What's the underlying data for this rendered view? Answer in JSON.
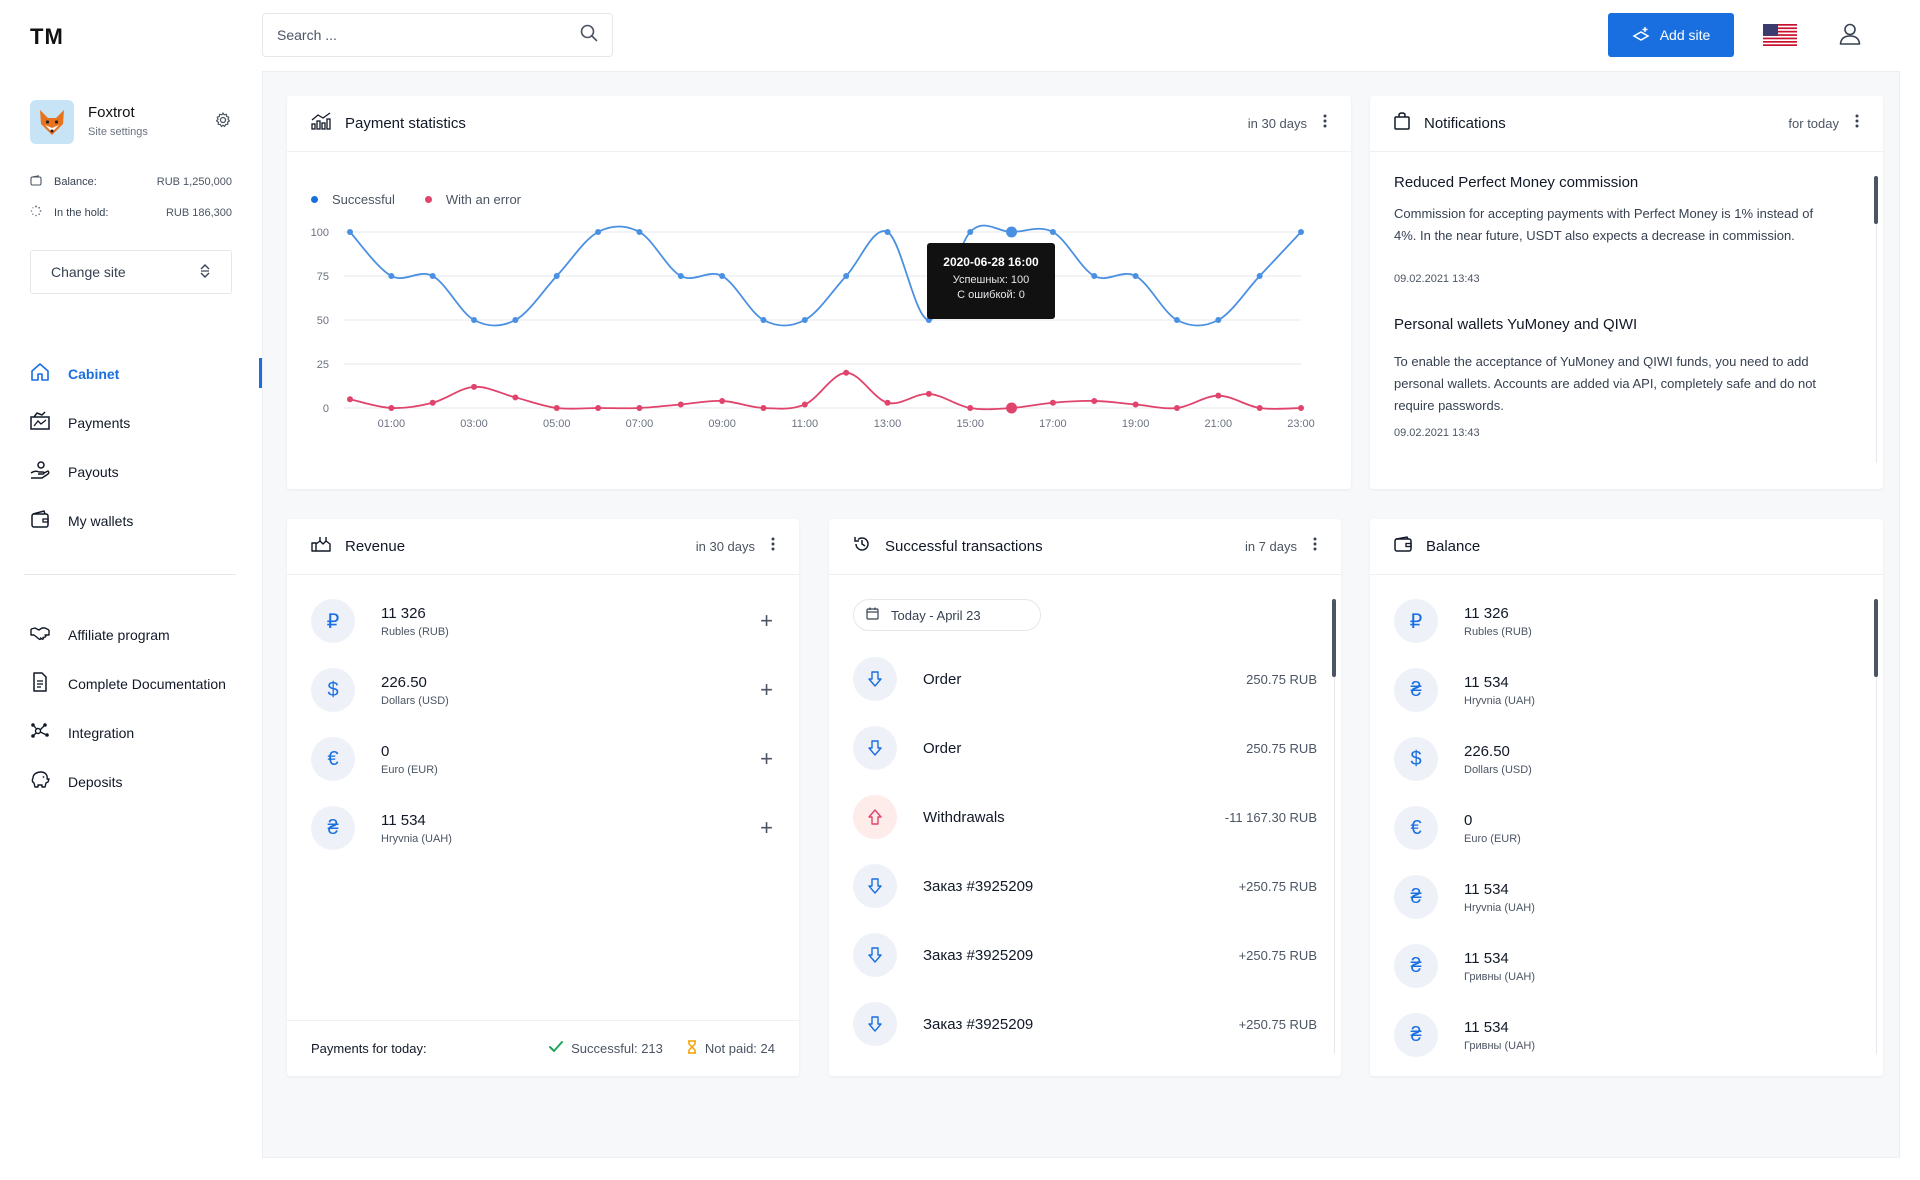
{
  "header": {
    "logo": "TM",
    "search_placeholder": "Search ...",
    "add_site_label": "Add site"
  },
  "profile": {
    "name": "Foxtrot",
    "subtitle": "Site settings",
    "balance_label": "Balance:",
    "balance_value": "RUB 1,250,000",
    "hold_label": "In the hold:",
    "hold_value": "RUB 186,300",
    "change_site_label": "Change site"
  },
  "nav": {
    "main": [
      {
        "label": "Cabinet",
        "icon": "home-icon",
        "active": true
      },
      {
        "label": "Payments",
        "icon": "payments-icon"
      },
      {
        "label": "Payouts",
        "icon": "payouts-icon"
      },
      {
        "label": "My wallets",
        "icon": "wallet-icon"
      }
    ],
    "secondary": [
      {
        "label": "Affiliate program",
        "icon": "handshake-icon"
      },
      {
        "label": "Complete Documentation",
        "icon": "document-icon"
      },
      {
        "label": "Integration",
        "icon": "integration-icon"
      },
      {
        "label": "Deposits",
        "icon": "deposits-icon"
      }
    ]
  },
  "payment_stats": {
    "title": "Payment statistics",
    "period": "in 30 days",
    "legend_success": "Successful",
    "legend_error": "With an error",
    "tooltip": {
      "title": "2020-06-28 16:00",
      "line1": "Успешных: 100",
      "line2": "С ошибкой: 0"
    }
  },
  "chart_data": {
    "type": "line",
    "x": [
      "00:00",
      "01:00",
      "02:00",
      "03:00",
      "04:00",
      "05:00",
      "06:00",
      "07:00",
      "08:00",
      "09:00",
      "10:00",
      "11:00",
      "12:00",
      "13:00",
      "14:00",
      "15:00",
      "16:00",
      "17:00",
      "18:00",
      "19:00",
      "20:00",
      "21:00",
      "22:00",
      "23:00"
    ],
    "x_tick_labels": [
      "01:00",
      "03:00",
      "05:00",
      "07:00",
      "09:00",
      "11:00",
      "13:00",
      "15:00",
      "17:00",
      "19:00",
      "21:00",
      "23:00"
    ],
    "y_ticks": [
      0,
      25,
      50,
      75,
      100
    ],
    "ylim": [
      0,
      100
    ],
    "grid": true,
    "series": [
      {
        "name": "Successful",
        "color": "#4a90e2",
        "values": [
          100,
          75,
          75,
          50,
          50,
          75,
          100,
          100,
          75,
          75,
          50,
          50,
          75,
          100,
          50,
          100,
          100,
          100,
          75,
          75,
          50,
          50,
          75,
          100
        ]
      },
      {
        "name": "With an error",
        "color": "#e0436b",
        "values": [
          5,
          0,
          3,
          12,
          6,
          0,
          0,
          0,
          2,
          4,
          0,
          2,
          20,
          3,
          8,
          0,
          0,
          3,
          4,
          2,
          0,
          7,
          0,
          0
        ]
      }
    ]
  },
  "notifications": {
    "title": "Notifications",
    "period": "for today",
    "items": [
      {
        "title": "Reduced Perfect Money commission",
        "text_line1": "Commission for accepting payments with Perfect Money is 1% instead of",
        "text_line2": "4%. In the near future, USDT also expects a decrease in commission.",
        "date": "09.02.2021 13:43"
      },
      {
        "title": "Personal wallets YuMoney and QIWI",
        "text_line1": "To enable the acceptance of YuMoney and QIWI funds, you need to add",
        "text_line2": "personal wallets. Accounts are added via API, completely safe and do not",
        "text_line3": "require passwords.",
        "date": "09.02.2021 13:43"
      }
    ]
  },
  "revenue": {
    "title": "Revenue",
    "period": "in 30 days",
    "items": [
      {
        "symbol": "₽",
        "amount": "11 326",
        "name": "Rubles (RUB)"
      },
      {
        "symbol": "$",
        "amount": "226.50",
        "name": "Dollars (USD)"
      },
      {
        "symbol": "€",
        "amount": "0",
        "name": "Euro (EUR)"
      },
      {
        "symbol": "₴",
        "amount": "11 534",
        "name": "Hryvnia (UAH)"
      }
    ],
    "footer_label": "Payments for today:",
    "successful": "Successful: 213",
    "not_paid": "Not paid: 24"
  },
  "transactions": {
    "title": "Successful transactions",
    "period": "in 7 days",
    "date_filter": "Today - April 23",
    "items": [
      {
        "label": "Order",
        "amount": "250.75 RUB",
        "dir": "in"
      },
      {
        "label": "Order",
        "amount": "250.75 RUB",
        "dir": "in"
      },
      {
        "label": "Withdrawals",
        "amount": "-11 167.30 RUB",
        "dir": "out"
      },
      {
        "label": "Заказ #3925209",
        "amount": "+250.75 RUB",
        "dir": "in"
      },
      {
        "label": "Заказ #3925209",
        "amount": "+250.75 RUB",
        "dir": "in"
      },
      {
        "label": "Заказ #3925209",
        "amount": "+250.75 RUB",
        "dir": "in"
      }
    ]
  },
  "balance": {
    "title": "Balance",
    "items": [
      {
        "symbol": "₽",
        "amount": "11 326",
        "name": "Rubles (RUB)"
      },
      {
        "symbol": "₴",
        "amount": "11 534",
        "name": "Hryvnia (UAH)"
      },
      {
        "symbol": "$",
        "amount": "226.50",
        "name": "Dollars (USD)"
      },
      {
        "symbol": "€",
        "amount": "0",
        "name": "Euro (EUR)"
      },
      {
        "symbol": "₴",
        "amount": "11 534",
        "name": "Hryvnia (UAH)"
      },
      {
        "symbol": "₴",
        "amount": "11 534",
        "name": "Гривны (UAH)"
      },
      {
        "symbol": "₴",
        "amount": "11 534",
        "name": "Гривны (UAH)"
      }
    ]
  }
}
